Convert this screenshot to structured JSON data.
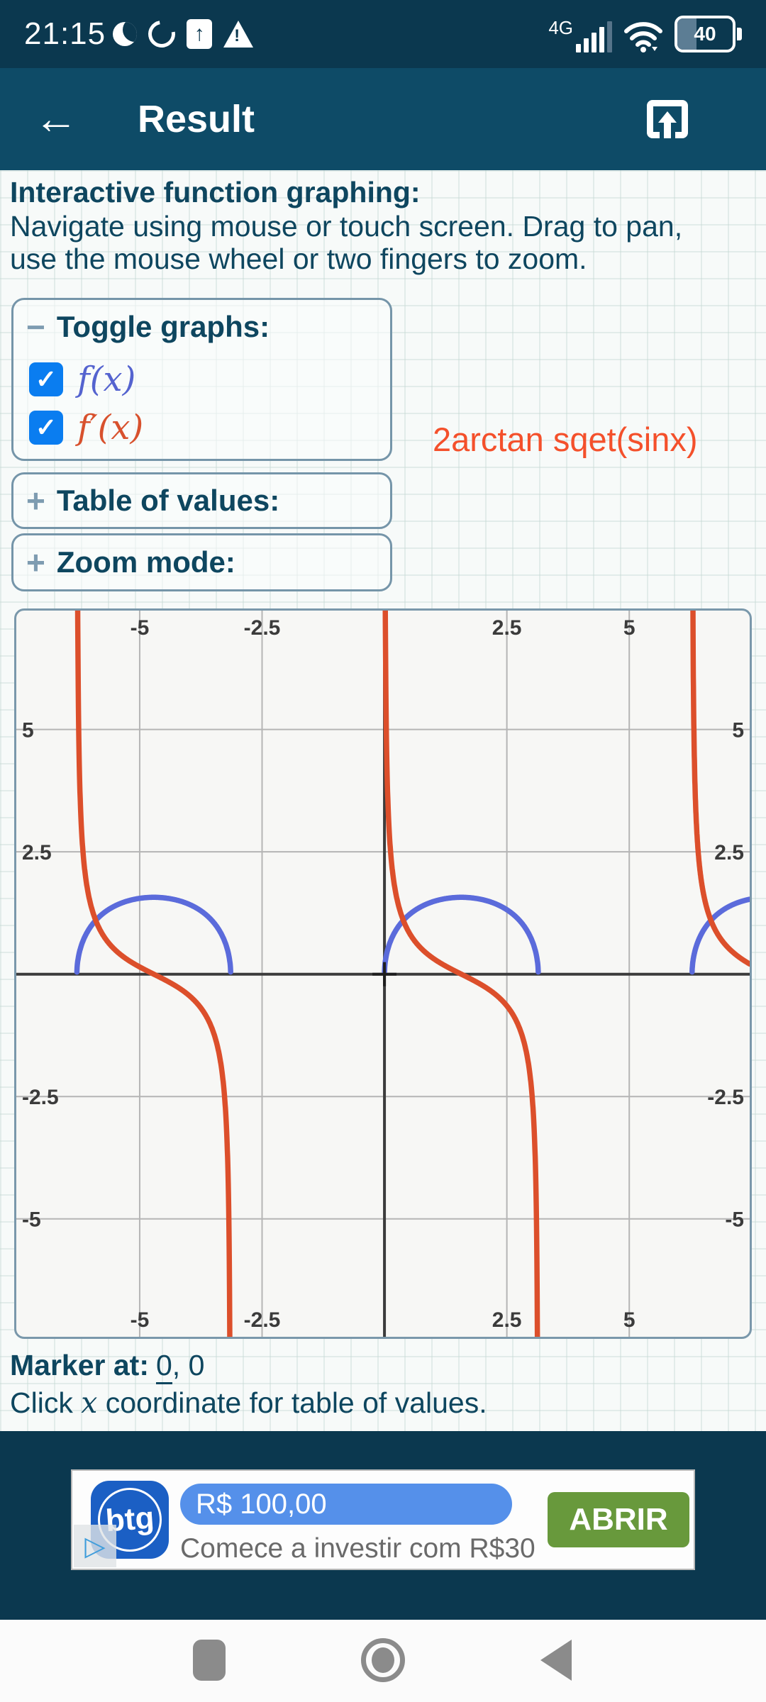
{
  "status_bar": {
    "time": "21:15",
    "network_label": "4G",
    "battery_percent": "40"
  },
  "app_bar": {
    "title": "Result"
  },
  "page": {
    "heading": "Interactive function graphing:",
    "body_line1": "Navigate using mouse or touch screen. Drag to pan,",
    "body_line2": "use the mouse wheel or two fingers to zoom."
  },
  "panels": {
    "toggle": {
      "fold_icon": "−",
      "title": "Toggle graphs:",
      "check_glyph": "✓",
      "checkbox_color": "#0a7df0",
      "items": [
        {
          "label": "f(x)",
          "checked": true,
          "color": "#5463cf"
        },
        {
          "label": "f′(x)",
          "checked": true,
          "color": "#d8512d"
        }
      ]
    },
    "table": {
      "fold_icon": "+",
      "title": "Table of values:"
    },
    "zoom": {
      "fold_icon": "+",
      "title": "Zoom mode:"
    }
  },
  "annotation": {
    "text": "2arctan sqet(sinx)",
    "color": "#f4502b"
  },
  "chart_data": {
    "type": "line",
    "title": "",
    "xlabel": "",
    "ylabel": "",
    "x_range": [
      -7.52,
      7.46
    ],
    "y_range": [
      -7.41,
      7.43
    ],
    "x_ticks": [
      -5,
      -2.5,
      2.5,
      5
    ],
    "y_ticks": [
      5,
      2.5,
      -2.5,
      -5
    ],
    "grid": true,
    "grid_color": "#b5b5b5",
    "axis_color": "#3c3c3c",
    "tick_label_color": "#3b3b3b",
    "marker_point": {
      "x": 0,
      "y": 0
    },
    "series": [
      {
        "name": "f(x)",
        "expr": "2*Math.atan(Math.sqrt(Math.sin(x)))",
        "color": "#5b6bdb",
        "domains": [
          [
            -6.2827,
            -3.1421
          ],
          [
            0.0005,
            3.1411
          ],
          [
            6.2837,
            7.46
          ]
        ]
      },
      {
        "name": "f'(x)",
        "expr": "Math.cos(x)/(Math.sqrt(Math.sin(x))*(1+Math.sin(x)))",
        "color": "#dc4f2b",
        "domains": [
          [
            -6.2827,
            -3.1421
          ],
          [
            0.0005,
            3.1411
          ],
          [
            6.2837,
            7.46
          ]
        ]
      }
    ]
  },
  "marker": {
    "label": "Marker at:",
    "x_value": "0",
    "comma": ", ",
    "y_value": "0",
    "hint_pre": "Click ",
    "hint_italic": "x",
    "hint_post": " coordinate for table of values."
  },
  "ad": {
    "logo_text": "btg",
    "play_glyph": "▷",
    "price": "R$  100,00",
    "subtitle": "Comece a investir com R$30",
    "cta": "ABRIR",
    "cta_color": "#68993c",
    "price_pill_color": "#5590ea",
    "logo_color": "#1b5fc4"
  }
}
